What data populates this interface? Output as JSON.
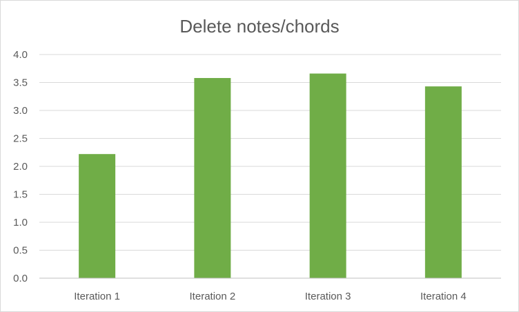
{
  "chart_data": {
    "type": "bar",
    "title": "Delete notes/chords",
    "categories": [
      "Iteration 1",
      "Iteration 2",
      "Iteration 3",
      "Iteration 4"
    ],
    "values": [
      2.22,
      3.58,
      3.66,
      3.43
    ],
    "ylim": [
      0,
      4.0
    ],
    "yticks": [
      "0.0",
      "0.5",
      "1.0",
      "1.5",
      "2.0",
      "2.5",
      "3.0",
      "3.5",
      "4.0"
    ],
    "xlabel": "",
    "ylabel": "",
    "grid": true,
    "legend": "none",
    "bar_color": "#70ad47",
    "grid_color": "#d9d9d9",
    "axis_color": "#bfbfbf"
  }
}
